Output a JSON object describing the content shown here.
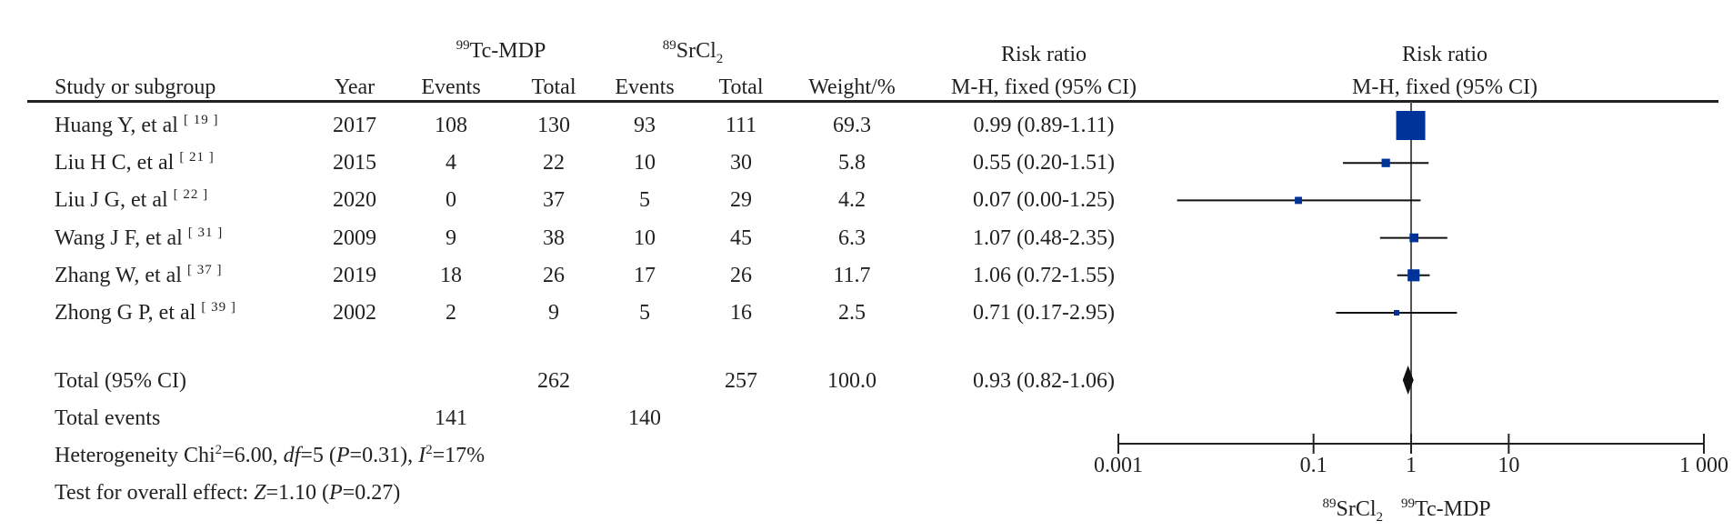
{
  "header": {
    "group1": {
      "sup": "99",
      "text": "Tc-MDP"
    },
    "group2": {
      "sup": "89",
      "text": "SrCl",
      "sub": "2"
    },
    "risk_ratio_1": "Risk ratio",
    "risk_ratio_2": "Risk ratio",
    "col_study": "Study or subgroup",
    "col_year": "Year",
    "col_events_1": "Events",
    "col_total_1": "Total",
    "col_events_2": "Events",
    "col_total_2": "Total",
    "col_weight": "Weight/%",
    "col_method_1": "M-H, fixed (95% CI)",
    "col_method_2": "M-H, fixed (95% CI)"
  },
  "studies": [
    {
      "name": "Huang Y, et al",
      "ref": "[ 19 ]",
      "year": "2017",
      "events1": "108",
      "total1": "130",
      "events2": "93",
      "total2": "111",
      "weight": "69.3",
      "ci": "0.99 (0.89-1.11)"
    },
    {
      "name": "Liu H C, et al",
      "ref": "[ 21 ]",
      "year": "2015",
      "events1": "4",
      "total1": "22",
      "events2": "10",
      "total2": "30",
      "weight": "5.8",
      "ci": "0.55 (0.20-1.51)"
    },
    {
      "name": "Liu J G, et al",
      "ref": "[ 22 ]",
      "year": "2020",
      "events1": "0",
      "total1": "37",
      "events2": "5",
      "total2": "29",
      "weight": "4.2",
      "ci": "0.07 (0.00-1.25)"
    },
    {
      "name": "Wang J F, et al",
      "ref": "[ 31 ]",
      "year": "2009",
      "events1": "9",
      "total1": "38",
      "events2": "10",
      "total2": "45",
      "weight": "6.3",
      "ci": "1.07 (0.48-2.35)"
    },
    {
      "name": "Zhang W, et al",
      "ref": "[ 37 ]",
      "year": "2019",
      "events1": "18",
      "total1": "26",
      "events2": "17",
      "total2": "26",
      "weight": "11.7",
      "ci": "1.06 (0.72-1.55)"
    },
    {
      "name": "Zhong G P, et al",
      "ref": "[ 39 ]",
      "year": "2002",
      "events1": "2",
      "total1": "9",
      "events2": "5",
      "total2": "16",
      "weight": "2.5",
      "ci": "0.71 (0.17-2.95)"
    }
  ],
  "total": {
    "label": "Total (95% CI)",
    "total1": "262",
    "total2": "257",
    "weight": "100.0",
    "ci": "0.93 (0.82-1.06)"
  },
  "total_events": {
    "label": "Total events",
    "events1": "141",
    "events2": "140"
  },
  "heterogeneity": {
    "a": "Heterogeneity Chi",
    "a_sup": "2",
    "b": "=6.00, ",
    "df": "df",
    "c": "=5 (",
    "p": "P",
    "d": "=0.31), ",
    "i": "I",
    "i_sup": "2",
    "e": "=17%"
  },
  "overall": {
    "a": "Test for overall effect: ",
    "z": "Z",
    "b": "=1.10 (",
    "p": "P",
    "c": "=0.27)"
  },
  "chart_data": {
    "type": "forest",
    "x_scale": "log",
    "xlim": [
      0.001,
      1000
    ],
    "ticks": [
      0.001,
      0.1,
      1,
      10,
      1000
    ],
    "tick_labels": [
      "0.001",
      "0.1",
      "1",
      "10",
      "1 000"
    ],
    "null_line": 1,
    "favours_left": {
      "sup": "89",
      "text": "SrCl",
      "sub": "2"
    },
    "favours_right": {
      "sup": "99",
      "text": "Tc-MDP"
    },
    "square_color": "#003399",
    "studies": [
      {
        "rr": 0.99,
        "lower": 0.89,
        "upper": 1.11,
        "weight": 69.3
      },
      {
        "rr": 0.55,
        "lower": 0.2,
        "upper": 1.51,
        "weight": 5.8
      },
      {
        "rr": 0.07,
        "lower": 0.004,
        "upper": 1.25,
        "weight": 4.2
      },
      {
        "rr": 1.07,
        "lower": 0.48,
        "upper": 2.35,
        "weight": 6.3
      },
      {
        "rr": 1.06,
        "lower": 0.72,
        "upper": 1.55,
        "weight": 11.7
      },
      {
        "rr": 0.71,
        "lower": 0.17,
        "upper": 2.95,
        "weight": 2.5
      }
    ],
    "pooled": {
      "rr": 0.93,
      "lower": 0.82,
      "upper": 1.06
    }
  }
}
